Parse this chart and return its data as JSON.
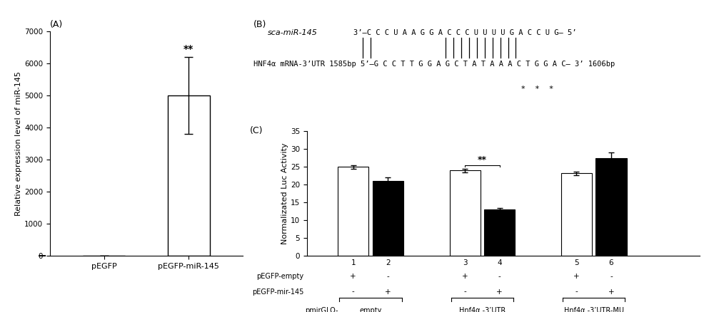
{
  "panel_A": {
    "categories": [
      "pEGFP",
      "pEGFP-miR-145"
    ],
    "values": [
      1,
      5000
    ],
    "errors": [
      0.15,
      1200
    ],
    "ylabel": "Relative expression level of miR-145",
    "ylim": [
      0,
      7000
    ],
    "yticks": [
      0,
      1000,
      2000,
      3000,
      4000,
      5000,
      6000,
      7000
    ],
    "bar_color": "white",
    "bar_edgecolor": "black",
    "significance": "**"
  },
  "panel_B": {
    "sca_label": "sca-miR-145",
    "sca_seq": "3’—C C C U A A G G A C C C U U U U G A C C U G— 5’",
    "hnf_full": "HNF4α mRNA-3’UTR 1585bp 5’—G C C T T G G A G C T A T A A A C T G G A C— 3’ 1606bp",
    "stars": "*    *    *"
  },
  "panel_C": {
    "bar_labels": [
      "1",
      "2",
      "3",
      "4",
      "5",
      "6"
    ],
    "values": [
      25,
      21,
      24,
      13,
      23.2,
      27.5
    ],
    "errors": [
      0.5,
      1.0,
      0.5,
      0.5,
      0.5,
      1.5
    ],
    "colors": [
      "white",
      "black",
      "white",
      "black",
      "white",
      "black"
    ],
    "ylabel": "Normalizated Luc Activity",
    "ylim": [
      0,
      35
    ],
    "yticks": [
      0,
      5,
      10,
      15,
      20,
      25,
      30,
      35
    ],
    "significance": "**",
    "row1_label": "pEGFP-empty",
    "row2_label": "pEGFP-mir-145",
    "row1_values": [
      "+",
      "-",
      "+",
      "-",
      "+",
      "-"
    ],
    "row2_values": [
      "-",
      "+",
      "-",
      "+",
      "-",
      "+"
    ],
    "group_labels": [
      "empty",
      "Hnf4α -3’UTR",
      "Hnf4α -3’UTR-MU"
    ],
    "group_label_prefix": "pmirGLO-"
  },
  "bg_color": "white"
}
